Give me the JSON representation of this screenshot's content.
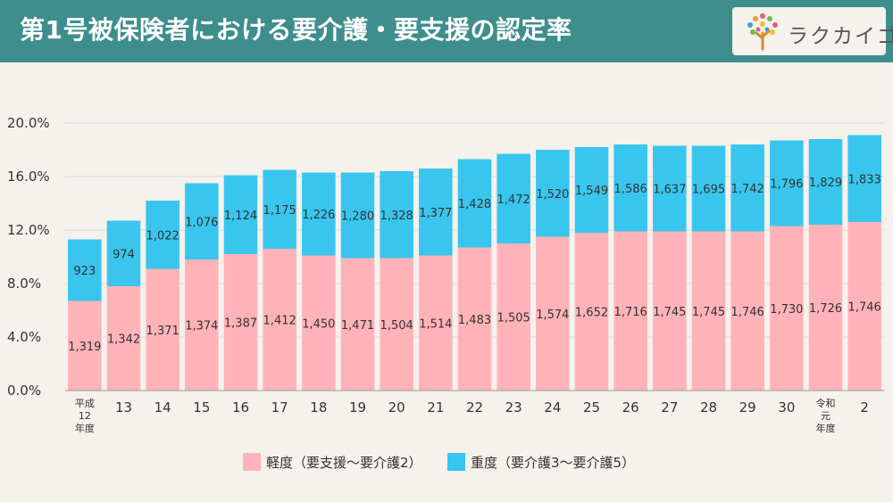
{
  "header": {
    "title": "第1号被保険者における要介護・要支援の認定率",
    "logo_text": "ラクカイゴ",
    "background_color": "#3e8e8e"
  },
  "chart_data": {
    "type": "bar",
    "stacked": true,
    "categories": [
      "平成\n12\n年度",
      "13",
      "14",
      "15",
      "16",
      "17",
      "18",
      "19",
      "20",
      "21",
      "22",
      "23",
      "24",
      "25",
      "26",
      "27",
      "28",
      "29",
      "30",
      "令和\n元\n年度",
      "2"
    ],
    "series": [
      {
        "name": "軽度（要支援〜要介護2）",
        "color": "#ffb3b8",
        "values": [
          6.7,
          7.8,
          9.1,
          9.8,
          10.2,
          10.6,
          10.1,
          9.9,
          9.9,
          10.1,
          10.7,
          11.0,
          11.5,
          11.8,
          11.9,
          11.9,
          11.9,
          11.9,
          12.3,
          12.4,
          12.6
        ],
        "labels": [
          "1,319",
          "1,342",
          "1,371",
          "1,374",
          "1,387",
          "1,412",
          "1,450",
          "1,471",
          "1,504",
          "1,514",
          "1,483",
          "1,505",
          "1,574",
          "1,652",
          "1,716",
          "1,745",
          "1,745",
          "1,746",
          "1,730",
          "1,726",
          "1,746"
        ]
      },
      {
        "name": "重度（要介護3〜要介護5）",
        "color": "#38c6ee",
        "values": [
          4.6,
          4.9,
          5.1,
          5.7,
          5.9,
          5.9,
          6.2,
          6.4,
          6.5,
          6.5,
          6.6,
          6.7,
          6.5,
          6.4,
          6.5,
          6.4,
          6.4,
          6.5,
          6.4,
          6.4,
          6.5
        ],
        "labels": [
          "923",
          "974",
          "1,022",
          "1,076",
          "1,124",
          "1,175",
          "1,226",
          "1,280",
          "1,328",
          "1,377",
          "1,428",
          "1,472",
          "1,520",
          "1,549",
          "1,586",
          "1,637",
          "1,695",
          "1,742",
          "1,796",
          "1,829",
          "1,833"
        ]
      }
    ],
    "y_ticks": [
      "0.0%",
      "4.0%",
      "8.0%",
      "12.0%",
      "16.0%",
      "20.0%"
    ],
    "ylim": [
      0,
      20
    ],
    "grid": true,
    "legend_position": "bottom"
  }
}
